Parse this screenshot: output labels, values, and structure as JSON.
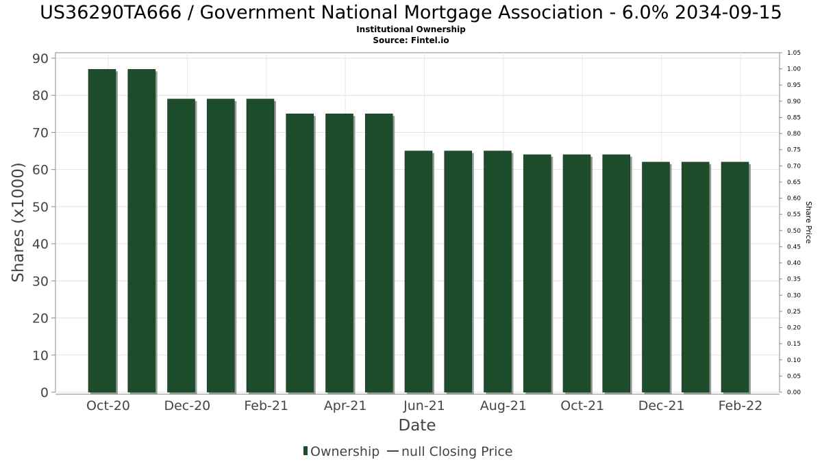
{
  "chart_data": {
    "type": "bar",
    "title": "US36290TA666 / Government National Mortgage Association - 6.0% 2034-09-15",
    "subtitle": "Institutional Ownership",
    "source": "Source: Fintel.io",
    "xlabel": "Date",
    "ylabel": "Shares (x1000)",
    "y2label": "Share Price",
    "ylim": [
      0,
      90
    ],
    "yticks": [
      "0",
      "10",
      "20",
      "30",
      "40",
      "50",
      "60",
      "70",
      "80",
      "90"
    ],
    "y2lim": [
      0,
      1.05
    ],
    "y2ticks": [
      "0.00",
      "0.05",
      "0.10",
      "0.15",
      "0.20",
      "0.25",
      "0.30",
      "0.35",
      "0.40",
      "0.45",
      "0.50",
      "0.55",
      "0.60",
      "0.65",
      "0.70",
      "0.75",
      "0.80",
      "0.85",
      "0.90",
      "0.95",
      "1.00",
      "1.05"
    ],
    "xtick_labels": [
      "Oct-20",
      "Dec-20",
      "Feb-21",
      "Apr-21",
      "Jun-21",
      "Aug-21",
      "Oct-21",
      "Dec-21",
      "Feb-22"
    ],
    "grid": true,
    "legend_position": "bottom",
    "series": [
      {
        "name": "Ownership",
        "color": "#1e4d2b",
        "values": [
          87,
          87,
          79,
          79,
          79,
          75,
          75,
          75,
          65,
          65,
          65,
          64,
          64,
          64,
          62,
          62,
          62
        ]
      },
      {
        "name": "null Closing Price",
        "color": "#444444",
        "values": []
      }
    ]
  }
}
